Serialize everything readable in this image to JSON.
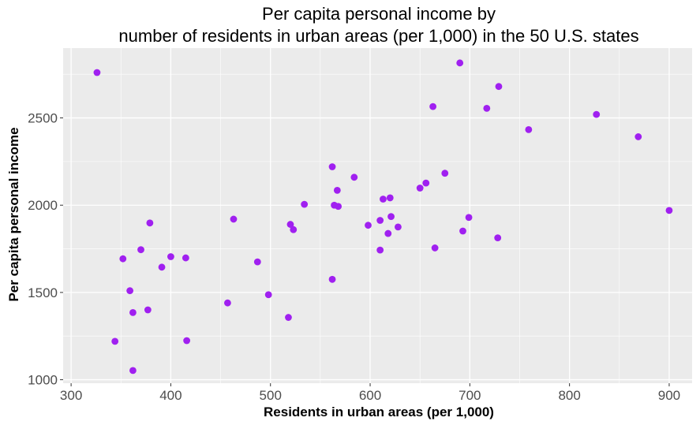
{
  "chart_data": {
    "type": "scatter",
    "title": "Per capita personal income by",
    "subtitle": "number of residents in urban areas (per 1,000) in the 50 U.S. states",
    "xlabel": "Residents in urban areas (per 1,000)",
    "ylabel": "Per capita personal income",
    "xlim": [
      292,
      923
    ],
    "ylim": [
      980,
      2900
    ],
    "xticks": [
      300,
      400,
      500,
      600,
      700,
      800,
      900
    ],
    "yticks": [
      1000,
      1500,
      2000,
      2500
    ],
    "grid": true,
    "legend": "none",
    "colors": {
      "point": "#A020F0",
      "panel": "#EBEBEB",
      "grid": "#FFFFFF",
      "tick": "#4D4D4D"
    },
    "x": [
      326,
      344,
      352,
      359,
      362,
      362,
      370,
      377,
      379,
      391,
      400,
      415,
      416,
      457,
      463,
      487,
      498,
      518,
      520,
      523,
      534,
      562,
      562,
      564,
      567,
      568,
      584,
      598,
      610,
      610,
      613,
      618,
      620,
      621,
      628,
      650,
      656,
      663,
      665,
      675,
      690,
      693,
      699,
      717,
      728,
      729,
      759,
      827,
      869,
      900
    ],
    "y": [
      2760,
      1220,
      1693,
      1510,
      1385,
      1053,
      1745,
      1400,
      1898,
      1645,
      1705,
      1698,
      1224,
      1440,
      1920,
      1675,
      1487,
      1357,
      1890,
      1860,
      2005,
      2220,
      1575,
      2000,
      2085,
      1993,
      2160,
      1885,
      1913,
      1743,
      2035,
      1838,
      2042,
      1935,
      1875,
      2098,
      2127,
      2565,
      1755,
      2183,
      2815,
      1852,
      1930,
      2555,
      1813,
      2680,
      2433,
      2520,
      2392,
      1970
    ]
  }
}
